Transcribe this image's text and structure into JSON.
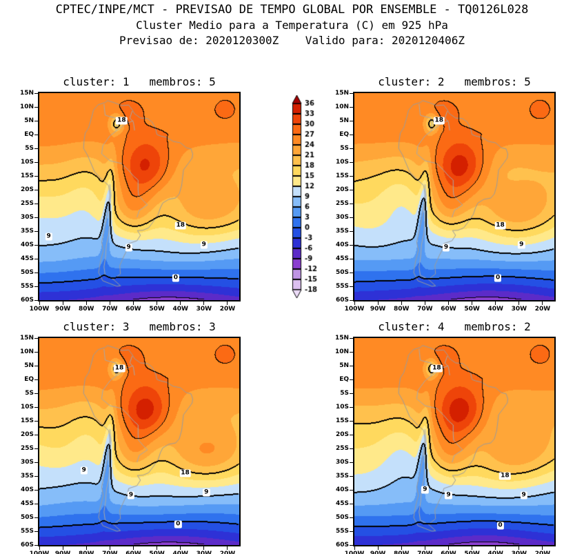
{
  "header": {
    "line1": "CPTEC/INPE/MCT - PREVISAO DE TEMPO GLOBAL POR ENSEMBLE - TQ0126L028",
    "line2": "Cluster Medio para a Temperatura (C) em 925 hPa",
    "line3": "Previsao de: 2020120300Z    Valido para: 2020120406Z"
  },
  "chart_data": {
    "type": "heatmap",
    "title": "Cluster Medio para a Temperatura (C) em 925 hPa",
    "variable": "Temperatura",
    "units": "C",
    "level_hpa": 925,
    "model_tag": "TQ0126L028",
    "forecast_init": "2020120300Z",
    "forecast_valid": "2020120406Z",
    "lon_range": [
      -100,
      -15
    ],
    "lat_range": [
      -60,
      15
    ],
    "lon_ticks": [
      "100W",
      "90W",
      "80W",
      "70W",
      "60W",
      "50W",
      "40W",
      "30W",
      "20W"
    ],
    "lat_ticks": [
      "15N",
      "10N",
      "5N",
      "EQ",
      "5S",
      "10S",
      "15S",
      "20S",
      "25S",
      "30S",
      "35S",
      "40S",
      "45S",
      "50S",
      "55S",
      "60S"
    ],
    "levels": [
      -18,
      -15,
      -12,
      -9,
      -6,
      -3,
      0,
      3,
      6,
      9,
      12,
      15,
      18,
      21,
      24,
      27,
      30,
      33,
      36
    ],
    "palette": [
      "#ecdcf8",
      "#dcc0f0",
      "#bf94e4",
      "#8b3fd0",
      "#5c2bc8",
      "#2e31d6",
      "#2450e4",
      "#2f72ee",
      "#559af4",
      "#86bdf9",
      "#c4e0fb",
      "#ffe98a",
      "#ffd95e",
      "#ffc14d",
      "#ffa638",
      "#ff8a24",
      "#fb6a14",
      "#ee4409",
      "#d42000",
      "#a30000"
    ],
    "colorbar_labels": [
      "36",
      "33",
      "30",
      "27",
      "24",
      "21",
      "18",
      "15",
      "12",
      "9",
      "6",
      "3",
      "0",
      "-3",
      "-6",
      "-9",
      "-12",
      "-15",
      "-18"
    ],
    "contour_levels_thick": [
      0,
      9,
      18
    ],
    "contour_levels_thin": [
      -9,
      27
    ],
    "panels": [
      {
        "cluster": 1,
        "members": 5,
        "title": "cluster: 1   membros: 5",
        "seed": 0,
        "core_boost": 0,
        "contour_labels": [
          {
            "v": 18,
            "lon": -65,
            "lat": 5
          },
          {
            "v": 18,
            "lon": -40,
            "lat": -33
          },
          {
            "v": 9,
            "lon": -62,
            "lat": -41
          },
          {
            "v": 9,
            "lon": -30,
            "lat": -40
          },
          {
            "v": 9,
            "lon": -96,
            "lat": -37
          },
          {
            "v": 0,
            "lon": -42,
            "lat": -52
          }
        ]
      },
      {
        "cluster": 2,
        "members": 5,
        "title": "cluster: 2   membros: 5",
        "seed": 1,
        "core_boost": 0.5,
        "contour_labels": [
          {
            "v": 18,
            "lon": -64,
            "lat": 5
          },
          {
            "v": 18,
            "lon": -38,
            "lat": -33
          },
          {
            "v": 9,
            "lon": -61,
            "lat": -41
          },
          {
            "v": 9,
            "lon": -29,
            "lat": -40
          },
          {
            "v": 0,
            "lon": -39,
            "lat": -52
          }
        ]
      },
      {
        "cluster": 3,
        "members": 3,
        "title": "cluster: 3   membros: 3",
        "seed": 2,
        "core_boost": 0.9,
        "contour_labels": [
          {
            "v": 18,
            "lon": -66,
            "lat": 4
          },
          {
            "v": 9,
            "lon": -81,
            "lat": -33
          },
          {
            "v": 18,
            "lon": -38,
            "lat": -34
          },
          {
            "v": 9,
            "lon": -61,
            "lat": -42
          },
          {
            "v": 9,
            "lon": -29,
            "lat": -41
          },
          {
            "v": 0,
            "lon": -41,
            "lat": -52.5
          }
        ]
      },
      {
        "cluster": 4,
        "members": 2,
        "title": "cluster: 4   membros: 2",
        "seed": 3,
        "core_boost": 1.5,
        "contour_labels": [
          {
            "v": 18,
            "lon": -65,
            "lat": 4
          },
          {
            "v": 18,
            "lon": -36,
            "lat": -35
          },
          {
            "v": 9,
            "lon": -70,
            "lat": -40
          },
          {
            "v": 9,
            "lon": -60,
            "lat": -42
          },
          {
            "v": 9,
            "lon": -28,
            "lat": -42
          },
          {
            "v": 0,
            "lon": -38,
            "lat": -53
          }
        ]
      }
    ],
    "field": {
      "base_t0": 25.5,
      "lat_gradient": 0.42,
      "south_cold": {
        "amp": -10.5,
        "lat_start": -42,
        "scale": 18,
        "cap": 1.0,
        "lon_center": -45,
        "lon_sigma2": 900,
        "lon_base": 0.55,
        "lon_amp": 0.45
      },
      "perturb": {
        "amp": 1.1,
        "lon_freq": 0.11,
        "lat_freq": 0.13,
        "lat_center": -28,
        "lat_width": 22
      },
      "components": [
        {
          "name": "amazon-warm-core",
          "amp": 12,
          "lon": -55,
          "lat": -12,
          "sx": 11,
          "sy": 10,
          "core": true
        },
        {
          "name": "chaco-warm",
          "amp": 8,
          "lon": -60,
          "lat": -27,
          "sx": 9,
          "sy": 10
        },
        {
          "name": "south-atlantic-warm",
          "amp": 9,
          "lon": -30,
          "lat": -28,
          "sx": 20,
          "sy": 11
        },
        {
          "name": "llanos-warm",
          "amp": 3,
          "lon": -62,
          "lat": 8,
          "sx": 7,
          "sy": 5
        },
        {
          "name": "colombia-andes-cool",
          "amp": -10,
          "lon": -67,
          "lat": 4,
          "sx": 3,
          "sy": 3.5
        },
        {
          "name": "tropical-atlantic-warm",
          "amp": 3,
          "lon": -21,
          "lat": 9,
          "sx": 5,
          "sy": 4
        },
        {
          "name": "pacific-coastal-cool",
          "amp": -3,
          "lon": -80,
          "lat": -22,
          "sx": 9,
          "sy": 13
        }
      ],
      "andes_cool_strip": {
        "amp": -9,
        "lon0": -70.5,
        "tilt": 0.08,
        "lat_ref": -25,
        "sigma": 2.0,
        "lat_center": -27,
        "lat_sigma": 16
      }
    }
  },
  "basemap": {
    "coastline": [
      [
        -62,
        10.7
      ],
      [
        -65,
        10.5
      ],
      [
        -68,
        11.5
      ],
      [
        -71,
        12.3
      ],
      [
        -72,
        11.6
      ],
      [
        -75,
        10.8
      ],
      [
        -77,
        8.8
      ],
      [
        -77.5,
        7
      ],
      [
        -79,
        2.5
      ],
      [
        -80.5,
        0.5
      ],
      [
        -81,
        -2.5
      ],
      [
        -81.2,
        -5
      ],
      [
        -79.5,
        -7.5
      ],
      [
        -76.5,
        -13.5
      ],
      [
        -73.5,
        -16.2
      ],
      [
        -70.5,
        -18.5
      ],
      [
        -70,
        -22
      ],
      [
        -70.8,
        -27
      ],
      [
        -71.5,
        -31
      ],
      [
        -72.5,
        -35
      ],
      [
        -73.5,
        -39
      ],
      [
        -72.8,
        -42
      ],
      [
        -74,
        -46
      ],
      [
        -74.8,
        -50
      ],
      [
        -73,
        -53
      ],
      [
        -70,
        -54
      ],
      [
        -67,
        -55
      ],
      [
        -65.5,
        -54.8
      ],
      [
        -68.5,
        -52.5
      ],
      [
        -65.5,
        -50.5
      ],
      [
        -65.8,
        -47.5
      ],
      [
        -64,
        -44
      ],
      [
        -62.5,
        -41.5
      ],
      [
        -62,
        -39.5
      ],
      [
        -58.5,
        -38.5
      ],
      [
        -57,
        -36.5
      ],
      [
        -58.3,
        -34.8
      ],
      [
        -56,
        -34.7
      ],
      [
        -53.5,
        -33.8
      ],
      [
        -51.5,
        -31.5
      ],
      [
        -49.5,
        -29
      ],
      [
        -48.5,
        -26.5
      ],
      [
        -47.5,
        -24.8
      ],
      [
        -45,
        -23.5
      ],
      [
        -42,
        -23
      ],
      [
        -40.5,
        -21.5
      ],
      [
        -39.5,
        -18.5
      ],
      [
        -39,
        -15
      ],
      [
        -38.7,
        -12.8
      ],
      [
        -36.5,
        -10.3
      ],
      [
        -35,
        -8.5
      ],
      [
        -34.8,
        -7
      ],
      [
        -35.5,
        -5.2
      ],
      [
        -37.5,
        -4.8
      ],
      [
        -40,
        -3
      ],
      [
        -43,
        -2.5
      ],
      [
        -46,
        -1
      ],
      [
        -48.5,
        -0.5
      ],
      [
        -50,
        0
      ],
      [
        -50.5,
        2
      ],
      [
        -52,
        4.5
      ],
      [
        -54,
        5.8
      ],
      [
        -57,
        6
      ],
      [
        -59.5,
        7.5
      ],
      [
        -60.5,
        9
      ],
      [
        -62,
        10.7
      ]
    ],
    "borders": [
      [
        [
          -60,
          5
        ],
        [
          -63,
          4
        ],
        [
          -67,
          1.5
        ],
        [
          -70,
          -0.5
        ],
        [
          -73,
          -4
        ],
        [
          -73.5,
          -7
        ],
        [
          -70,
          -9.5
        ],
        [
          -65,
          -10.5
        ],
        [
          -62,
          -13
        ],
        [
          -60,
          -15
        ],
        [
          -58,
          -16.5
        ],
        [
          -58,
          -20
        ],
        [
          -57.8,
          -22
        ],
        [
          -55.8,
          -24
        ],
        [
          -54,
          -25.5
        ],
        [
          -57.5,
          -27.5
        ],
        [
          -58.5,
          -30
        ]
      ],
      [
        [
          -70,
          -18
        ],
        [
          -69.5,
          -22
        ],
        [
          -70.3,
          -27
        ],
        [
          -70,
          -31
        ],
        [
          -70.5,
          -36
        ],
        [
          -71.5,
          -40
        ],
        [
          -71.8,
          -44
        ],
        [
          -72.5,
          -48
        ],
        [
          -72,
          -51
        ],
        [
          -68.5,
          -52.5
        ]
      ],
      [
        [
          -72.5,
          11
        ],
        [
          -72,
          7
        ],
        [
          -70,
          6.5
        ],
        [
          -67.5,
          6
        ],
        [
          -67,
          3.5
        ],
        [
          -67.5,
          1.5
        ]
      ],
      [
        [
          -60.5,
          8.5
        ],
        [
          -61.5,
          6
        ],
        [
          -60,
          4.5
        ],
        [
          -59.5,
          1.5
        ]
      ]
    ]
  }
}
